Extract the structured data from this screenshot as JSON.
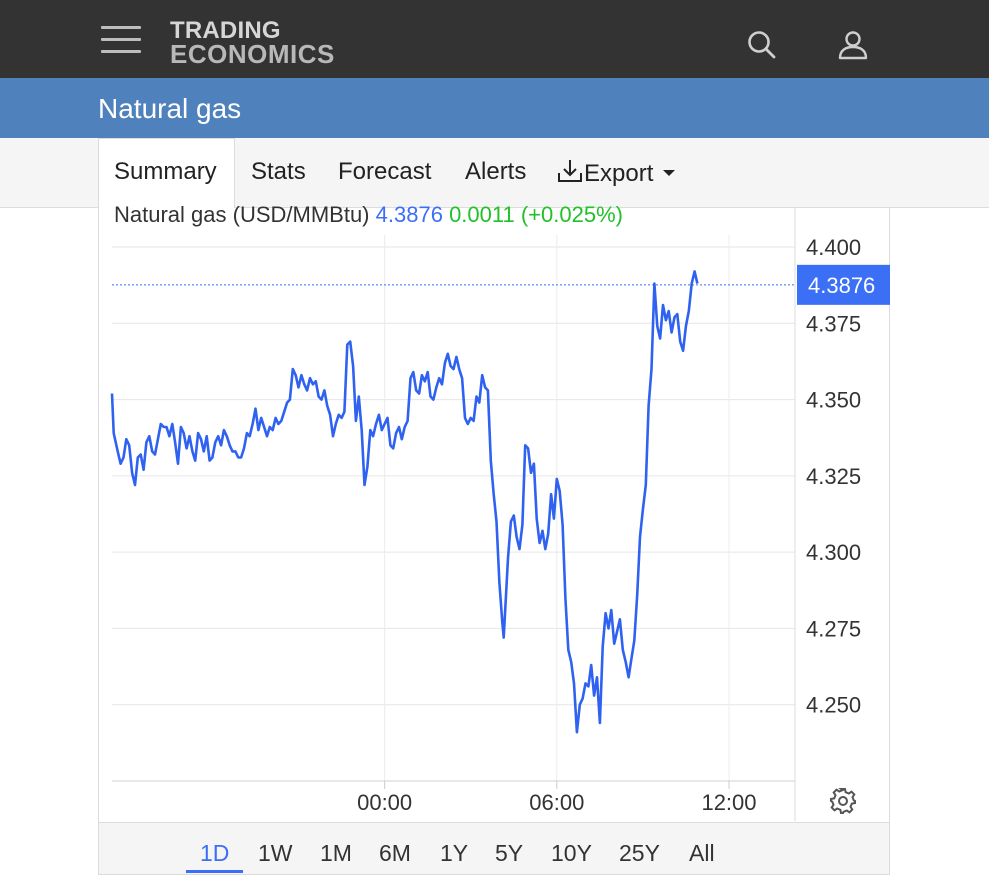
{
  "header": {
    "logo_line1": "TRADING",
    "logo_line2": "ECONOMICS",
    "icons": [
      "menu-icon",
      "search-icon",
      "user-icon"
    ]
  },
  "page_title": "Natural gas",
  "tabs": [
    {
      "label": "Summary",
      "active": true
    },
    {
      "label": "Stats"
    },
    {
      "label": "Forecast"
    },
    {
      "label": "Alerts"
    },
    {
      "label": "Export",
      "icon": "download-icon",
      "dropdown": true
    }
  ],
  "price": {
    "name": "Natural gas (USD/MMBtu)",
    "last": "4.3876",
    "change": "0.0011",
    "change_pct": "(+0.025%)"
  },
  "ranges": [
    {
      "label": "1D",
      "active": true
    },
    {
      "label": "1W"
    },
    {
      "label": "1M"
    },
    {
      "label": "6M"
    },
    {
      "label": "1Y"
    },
    {
      "label": "5Y"
    },
    {
      "label": "10Y"
    },
    {
      "label": "25Y"
    },
    {
      "label": "All"
    }
  ],
  "colors": {
    "line": "#2f62f0",
    "accent": "#3b6ff6",
    "positive": "#22c12a",
    "title_bar": "#4f81bd",
    "top_bar": "#333333"
  },
  "chart_data": {
    "type": "line",
    "title": "",
    "xlabel": "",
    "ylabel": "",
    "ylim": [
      4.225,
      4.4
    ],
    "yticks": [
      4.4,
      4.375,
      4.35,
      4.325,
      4.3,
      4.275,
      4.25
    ],
    "ytick_labels": [
      "4.400",
      "4.375",
      "4.350",
      "4.325",
      "4.300",
      "4.275",
      "4.250"
    ],
    "xlim_hours": [
      -9.5,
      14.3
    ],
    "xticks": [
      0,
      6,
      12
    ],
    "xtick_labels": [
      "00:00",
      "06:00",
      "12:00"
    ],
    "last_value_label": "4.3876",
    "last_value": 4.3876,
    "grid": true,
    "series": [
      {
        "points": [
          [
            -9.5,
            4.352
          ],
          [
            -9.44,
            4.339
          ],
          [
            -9.3,
            4.333
          ],
          [
            -9.2,
            4.329
          ],
          [
            -9.1,
            4.331
          ],
          [
            -9.0,
            4.337
          ],
          [
            -8.9,
            4.335
          ],
          [
            -8.8,
            4.326
          ],
          [
            -8.7,
            4.322
          ],
          [
            -8.6,
            4.331
          ],
          [
            -8.5,
            4.332
          ],
          [
            -8.4,
            4.327
          ],
          [
            -8.3,
            4.336
          ],
          [
            -8.2,
            4.338
          ],
          [
            -8.1,
            4.333
          ],
          [
            -8.0,
            4.332
          ],
          [
            -7.9,
            4.337
          ],
          [
            -7.8,
            4.342
          ],
          [
            -7.7,
            4.341
          ],
          [
            -7.6,
            4.341
          ],
          [
            -7.5,
            4.338
          ],
          [
            -7.4,
            4.342
          ],
          [
            -7.3,
            4.336
          ],
          [
            -7.2,
            4.329
          ],
          [
            -7.1,
            4.341
          ],
          [
            -7.0,
            4.339
          ],
          [
            -6.9,
            4.334
          ],
          [
            -6.8,
            4.338
          ],
          [
            -6.7,
            4.333
          ],
          [
            -6.6,
            4.33
          ],
          [
            -6.5,
            4.339
          ],
          [
            -6.4,
            4.337
          ],
          [
            -6.3,
            4.333
          ],
          [
            -6.2,
            4.338
          ],
          [
            -6.1,
            4.33
          ],
          [
            -6.0,
            4.331
          ],
          [
            -5.9,
            4.336
          ],
          [
            -5.8,
            4.338
          ],
          [
            -5.7,
            4.335
          ],
          [
            -5.6,
            4.34
          ],
          [
            -5.5,
            4.338
          ],
          [
            -5.4,
            4.335
          ],
          [
            -5.3,
            4.333
          ],
          [
            -5.2,
            4.333
          ],
          [
            -5.1,
            4.331
          ],
          [
            -5.0,
            4.331
          ],
          [
            -4.9,
            4.334
          ],
          [
            -4.8,
            4.339
          ],
          [
            -4.7,
            4.338
          ],
          [
            -4.6,
            4.342
          ],
          [
            -4.5,
            4.347
          ],
          [
            -4.4,
            4.34
          ],
          [
            -4.3,
            4.344
          ],
          [
            -4.2,
            4.341
          ],
          [
            -4.1,
            4.338
          ],
          [
            -4.0,
            4.341
          ],
          [
            -3.9,
            4.34
          ],
          [
            -3.8,
            4.344
          ],
          [
            -3.7,
            4.342
          ],
          [
            -3.6,
            4.343
          ],
          [
            -3.5,
            4.346
          ],
          [
            -3.4,
            4.349
          ],
          [
            -3.3,
            4.35
          ],
          [
            -3.2,
            4.36
          ],
          [
            -3.1,
            4.358
          ],
          [
            -3.0,
            4.354
          ],
          [
            -2.9,
            4.358
          ],
          [
            -2.8,
            4.355
          ],
          [
            -2.7,
            4.353
          ],
          [
            -2.6,
            4.357
          ],
          [
            -2.5,
            4.355
          ],
          [
            -2.4,
            4.356
          ],
          [
            -2.3,
            4.351
          ],
          [
            -2.2,
            4.35
          ],
          [
            -2.1,
            4.353
          ],
          [
            -2.0,
            4.348
          ],
          [
            -1.9,
            4.345
          ],
          [
            -1.8,
            4.338
          ],
          [
            -1.7,
            4.342
          ],
          [
            -1.6,
            4.345
          ],
          [
            -1.5,
            4.344
          ],
          [
            -1.4,
            4.346
          ],
          [
            -1.3,
            4.368
          ],
          [
            -1.2,
            4.369
          ],
          [
            -1.1,
            4.361
          ],
          [
            -1.0,
            4.343
          ],
          [
            -0.9,
            4.351
          ],
          [
            -0.8,
            4.34
          ],
          [
            -0.7,
            4.322
          ],
          [
            -0.6,
            4.328
          ],
          [
            -0.5,
            4.34
          ],
          [
            -0.4,
            4.338
          ],
          [
            -0.3,
            4.342
          ],
          [
            -0.2,
            4.345
          ],
          [
            -0.1,
            4.34
          ],
          [
            0.0,
            4.342
          ],
          [
            0.1,
            4.344
          ],
          [
            0.2,
            4.335
          ],
          [
            0.3,
            4.334
          ],
          [
            0.4,
            4.339
          ],
          [
            0.5,
            4.341
          ],
          [
            0.6,
            4.337
          ],
          [
            0.7,
            4.341
          ],
          [
            0.8,
            4.343
          ],
          [
            0.9,
            4.357
          ],
          [
            1.0,
            4.359
          ],
          [
            1.1,
            4.353
          ],
          [
            1.2,
            4.352
          ],
          [
            1.3,
            4.358
          ],
          [
            1.4,
            4.356
          ],
          [
            1.5,
            4.359
          ],
          [
            1.6,
            4.351
          ],
          [
            1.7,
            4.35
          ],
          [
            1.8,
            4.354
          ],
          [
            1.9,
            4.357
          ],
          [
            2.0,
            4.355
          ],
          [
            2.1,
            4.362
          ],
          [
            2.2,
            4.365
          ],
          [
            2.3,
            4.361
          ],
          [
            2.4,
            4.36
          ],
          [
            2.5,
            4.364
          ],
          [
            2.6,
            4.36
          ],
          [
            2.7,
            4.357
          ],
          [
            2.8,
            4.344
          ],
          [
            2.9,
            4.342
          ],
          [
            3.0,
            4.344
          ],
          [
            3.1,
            4.343
          ],
          [
            3.2,
            4.351
          ],
          [
            3.3,
            4.349
          ],
          [
            3.4,
            4.358
          ],
          [
            3.5,
            4.354
          ],
          [
            3.6,
            4.353
          ],
          [
            3.7,
            4.33
          ],
          [
            3.8,
            4.319
          ],
          [
            3.9,
            4.31
          ],
          [
            4.0,
            4.29
          ],
          [
            4.1,
            4.277
          ],
          [
            4.15,
            4.272
          ],
          [
            4.3,
            4.298
          ],
          [
            4.4,
            4.31
          ],
          [
            4.5,
            4.312
          ],
          [
            4.6,
            4.305
          ],
          [
            4.7,
            4.301
          ],
          [
            4.8,
            4.309
          ],
          [
            4.9,
            4.335
          ],
          [
            5.0,
            4.334
          ],
          [
            5.1,
            4.326
          ],
          [
            5.2,
            4.329
          ],
          [
            5.3,
            4.311
          ],
          [
            5.4,
            4.303
          ],
          [
            5.5,
            4.307
          ],
          [
            5.6,
            4.301
          ],
          [
            5.7,
            4.306
          ],
          [
            5.8,
            4.319
          ],
          [
            5.9,
            4.311
          ],
          [
            6.0,
            4.324
          ],
          [
            6.1,
            4.32
          ],
          [
            6.2,
            4.309
          ],
          [
            6.3,
            4.285
          ],
          [
            6.4,
            4.268
          ],
          [
            6.5,
            4.264
          ],
          [
            6.6,
            4.257
          ],
          [
            6.7,
            4.241
          ],
          [
            6.8,
            4.25
          ],
          [
            6.9,
            4.252
          ],
          [
            7.0,
            4.257
          ],
          [
            7.1,
            4.256
          ],
          [
            7.2,
            4.263
          ],
          [
            7.3,
            4.253
          ],
          [
            7.4,
            4.259
          ],
          [
            7.5,
            4.244
          ],
          [
            7.6,
            4.269
          ],
          [
            7.7,
            4.28
          ],
          [
            7.8,
            4.275
          ],
          [
            7.9,
            4.281
          ],
          [
            8.0,
            4.27
          ],
          [
            8.1,
            4.274
          ],
          [
            8.2,
            4.278
          ],
          [
            8.3,
            4.268
          ],
          [
            8.4,
            4.264
          ],
          [
            8.5,
            4.259
          ],
          [
            8.6,
            4.265
          ],
          [
            8.7,
            4.271
          ],
          [
            8.8,
            4.286
          ],
          [
            8.9,
            4.305
          ],
          [
            9.0,
            4.314
          ],
          [
            9.1,
            4.322
          ],
          [
            9.2,
            4.348
          ],
          [
            9.3,
            4.36
          ],
          [
            9.4,
            4.388
          ],
          [
            9.5,
            4.374
          ],
          [
            9.6,
            4.37
          ],
          [
            9.7,
            4.381
          ],
          [
            9.8,
            4.376
          ],
          [
            9.9,
            4.379
          ],
          [
            10.0,
            4.372
          ],
          [
            10.1,
            4.377
          ],
          [
            10.2,
            4.378
          ],
          [
            10.3,
            4.369
          ],
          [
            10.4,
            4.366
          ],
          [
            10.5,
            4.374
          ],
          [
            10.6,
            4.379
          ],
          [
            10.7,
            4.388
          ],
          [
            10.8,
            4.392
          ],
          [
            10.9,
            4.388
          ]
        ]
      }
    ]
  }
}
